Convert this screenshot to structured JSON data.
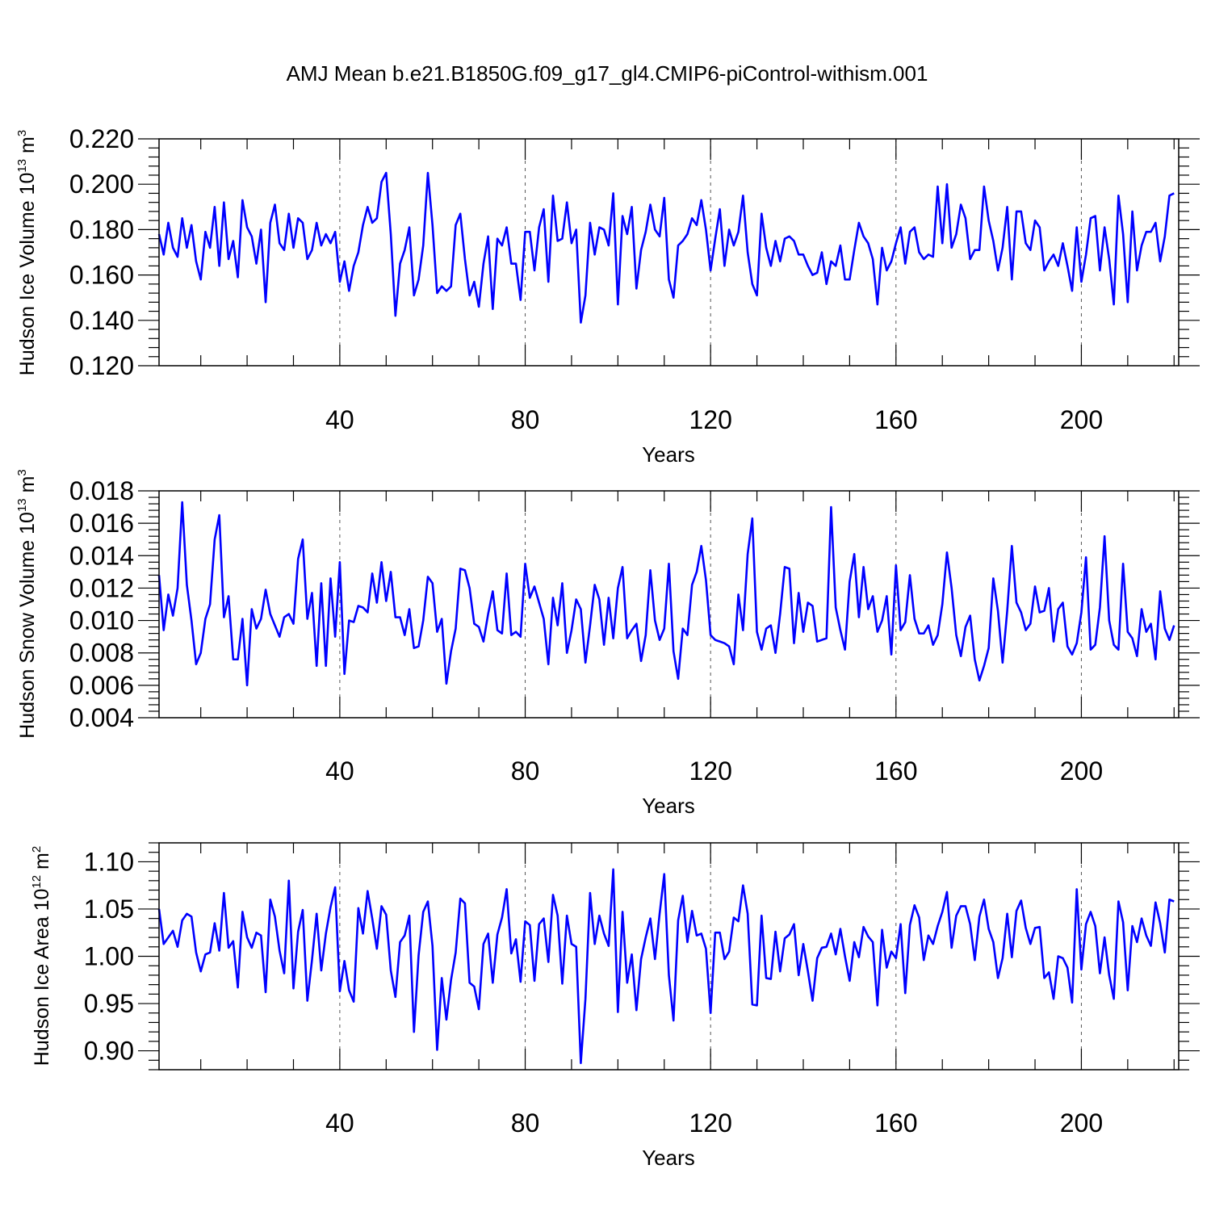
{
  "title": "AMJ Mean b.e21.B1850G.f09_g17_gl4.CMIP6-piControl-withism.001",
  "line_color": "#0000ff",
  "chart_data": [
    {
      "type": "line",
      "ylabel_main": "Hudson Ice Volume 10",
      "ylabel_exp": "13",
      "ylabel_unit": " m",
      "ylabel_unit_exp": "3",
      "xlabel": "Years",
      "xlim": [
        1,
        221
      ],
      "ylim": [
        0.12,
        0.22
      ],
      "xticks": [
        40,
        80,
        120,
        160,
        200
      ],
      "yticks": [
        "0.120",
        "0.140",
        "0.160",
        "0.180",
        "0.200",
        "0.220"
      ],
      "x_start": 1,
      "values": [
        0.178,
        0.169,
        0.183,
        0.172,
        0.168,
        0.185,
        0.172,
        0.182,
        0.166,
        0.158,
        0.179,
        0.172,
        0.19,
        0.164,
        0.192,
        0.167,
        0.175,
        0.159,
        0.193,
        0.181,
        0.177,
        0.165,
        0.18,
        0.148,
        0.183,
        0.191,
        0.174,
        0.171,
        0.187,
        0.172,
        0.185,
        0.183,
        0.167,
        0.171,
        0.183,
        0.173,
        0.178,
        0.174,
        0.179,
        0.157,
        0.166,
        0.153,
        0.164,
        0.17,
        0.182,
        0.19,
        0.183,
        0.185,
        0.201,
        0.205,
        0.178,
        0.142,
        0.165,
        0.171,
        0.181,
        0.151,
        0.158,
        0.173,
        0.205,
        0.182,
        0.152,
        0.155,
        0.153,
        0.155,
        0.182,
        0.187,
        0.167,
        0.151,
        0.157,
        0.146,
        0.165,
        0.177,
        0.145,
        0.176,
        0.173,
        0.181,
        0.165,
        0.165,
        0.149,
        0.179,
        0.179,
        0.162,
        0.181,
        0.189,
        0.157,
        0.195,
        0.175,
        0.176,
        0.192,
        0.174,
        0.18,
        0.139,
        0.151,
        0.183,
        0.169,
        0.181,
        0.18,
        0.173,
        0.196,
        0.147,
        0.186,
        0.178,
        0.19,
        0.154,
        0.171,
        0.179,
        0.191,
        0.18,
        0.177,
        0.194,
        0.158,
        0.15,
        0.173,
        0.175,
        0.178,
        0.185,
        0.182,
        0.193,
        0.18,
        0.162,
        0.176,
        0.189,
        0.164,
        0.18,
        0.173,
        0.179,
        0.195,
        0.17,
        0.156,
        0.151,
        0.187,
        0.172,
        0.164,
        0.175,
        0.166,
        0.176,
        0.177,
        0.175,
        0.169,
        0.169,
        0.164,
        0.16,
        0.161,
        0.17,
        0.156,
        0.166,
        0.164,
        0.173,
        0.158,
        0.158,
        0.171,
        0.183,
        0.177,
        0.174,
        0.167,
        0.147,
        0.172,
        0.162,
        0.166,
        0.174,
        0.181,
        0.165,
        0.179,
        0.181,
        0.17,
        0.167,
        0.169,
        0.168,
        0.199,
        0.174,
        0.2,
        0.172,
        0.178,
        0.191,
        0.185,
        0.167,
        0.171,
        0.171,
        0.199,
        0.184,
        0.175,
        0.162,
        0.172,
        0.19,
        0.158,
        0.188,
        0.188,
        0.174,
        0.171,
        0.184,
        0.181,
        0.162,
        0.166,
        0.169,
        0.164,
        0.174,
        0.164,
        0.153,
        0.181,
        0.157,
        0.169,
        0.185,
        0.186,
        0.162,
        0.181,
        0.167,
        0.147,
        0.195,
        0.178,
        0.148,
        0.188,
        0.162,
        0.173,
        0.179,
        0.179,
        0.183,
        0.166,
        0.177,
        0.195,
        0.196
      ]
    },
    {
      "type": "line",
      "ylabel_main": "Hudson Snow Volume 10",
      "ylabel_exp": "13",
      "ylabel_unit": " m",
      "ylabel_unit_exp": "3",
      "xlabel": "Years",
      "xlim": [
        1,
        221
      ],
      "ylim": [
        0.004,
        0.018
      ],
      "xticks": [
        40,
        80,
        120,
        160,
        200
      ],
      "yticks": [
        "0.004",
        "0.006",
        "0.008",
        "0.010",
        "0.012",
        "0.014",
        "0.016",
        "0.018"
      ],
      "x_start": 1,
      "values": [
        0.0128,
        0.0094,
        0.0116,
        0.0103,
        0.012,
        0.0173,
        0.0122,
        0.01,
        0.0073,
        0.008,
        0.0101,
        0.011,
        0.015,
        0.0165,
        0.0102,
        0.0115,
        0.0076,
        0.0076,
        0.0101,
        0.006,
        0.0107,
        0.0095,
        0.0101,
        0.0119,
        0.0104,
        0.0097,
        0.009,
        0.0102,
        0.0104,
        0.0098,
        0.0138,
        0.015,
        0.0101,
        0.0117,
        0.0072,
        0.0123,
        0.0072,
        0.0126,
        0.009,
        0.0136,
        0.0067,
        0.01,
        0.0099,
        0.0109,
        0.0108,
        0.0105,
        0.0129,
        0.0111,
        0.0136,
        0.0112,
        0.013,
        0.0102,
        0.0102,
        0.0091,
        0.0107,
        0.0083,
        0.0084,
        0.01,
        0.0127,
        0.0123,
        0.0093,
        0.0101,
        0.0061,
        0.0081,
        0.0095,
        0.0132,
        0.0131,
        0.012,
        0.0098,
        0.0096,
        0.0087,
        0.0104,
        0.0118,
        0.0094,
        0.0092,
        0.0129,
        0.0091,
        0.0093,
        0.009,
        0.0135,
        0.0114,
        0.0121,
        0.0111,
        0.0101,
        0.0073,
        0.0114,
        0.0097,
        0.0123,
        0.008,
        0.0094,
        0.0113,
        0.0107,
        0.0074,
        0.0097,
        0.0122,
        0.0113,
        0.0085,
        0.0114,
        0.0089,
        0.012,
        0.0133,
        0.0089,
        0.0094,
        0.0098,
        0.0075,
        0.0091,
        0.0131,
        0.01,
        0.0088,
        0.0095,
        0.0135,
        0.0081,
        0.0064,
        0.0095,
        0.0091,
        0.0122,
        0.013,
        0.0146,
        0.0125,
        0.0091,
        0.0088,
        0.0087,
        0.0086,
        0.0084,
        0.0073,
        0.0116,
        0.0094,
        0.0141,
        0.0163,
        0.0093,
        0.0082,
        0.0095,
        0.0097,
        0.008,
        0.0104,
        0.0133,
        0.0132,
        0.0086,
        0.0117,
        0.0093,
        0.0111,
        0.0109,
        0.0087,
        0.0088,
        0.0089,
        0.017,
        0.0108,
        0.0094,
        0.0082,
        0.0124,
        0.0141,
        0.0102,
        0.0133,
        0.0107,
        0.0115,
        0.0093,
        0.01,
        0.0115,
        0.0079,
        0.0134,
        0.0094,
        0.0099,
        0.0128,
        0.0101,
        0.0092,
        0.0092,
        0.0097,
        0.0085,
        0.0091,
        0.011,
        0.0142,
        0.012,
        0.0091,
        0.0078,
        0.0096,
        0.0103,
        0.0076,
        0.0063,
        0.0072,
        0.0083,
        0.0126,
        0.0106,
        0.0074,
        0.0106,
        0.0146,
        0.0111,
        0.0105,
        0.0094,
        0.0098,
        0.0121,
        0.0105,
        0.0106,
        0.012,
        0.0087,
        0.0107,
        0.0111,
        0.0084,
        0.0079,
        0.0086,
        0.0105,
        0.0139,
        0.0082,
        0.0085,
        0.0108,
        0.0152,
        0.01,
        0.0085,
        0.0082,
        0.0135,
        0.0093,
        0.0089,
        0.0078,
        0.0107,
        0.0093,
        0.0098,
        0.0076,
        0.0118,
        0.0095,
        0.0088,
        0.0097
      ]
    },
    {
      "type": "line",
      "ylabel_main": "Hudson Ice Area 10",
      "ylabel_exp": "12",
      "ylabel_unit": " m",
      "ylabel_unit_exp": "2",
      "xlabel": "Years",
      "xlim": [
        1,
        221
      ],
      "ylim": [
        0.88,
        1.12
      ],
      "xticks": [
        40,
        80,
        120,
        160,
        200
      ],
      "yticks": [
        "0.90",
        "0.95",
        "1.00",
        "1.05",
        "1.10"
      ],
      "x_start": 1,
      "values": [
        1.05,
        1.013,
        1.02,
        1.027,
        1.01,
        1.038,
        1.045,
        1.042,
        1.004,
        0.984,
        1.002,
        1.004,
        1.035,
        1.006,
        1.067,
        1.009,
        1.016,
        0.967,
        1.047,
        1.02,
        1.009,
        1.025,
        1.022,
        0.962,
        1.06,
        1.042,
        1.006,
        0.982,
        1.08,
        0.966,
        1.026,
        1.049,
        0.953,
        0.996,
        1.045,
        0.985,
        1.024,
        1.052,
        1.073,
        0.963,
        0.995,
        0.964,
        0.952,
        1.051,
        1.024,
        1.069,
        1.04,
        1.008,
        1.053,
        1.044,
        0.985,
        0.957,
        1.015,
        1.022,
        1.043,
        0.92,
        1.001,
        1.047,
        1.058,
        1.011,
        0.901,
        0.977,
        0.933,
        0.975,
        1.004,
        1.061,
        1.056,
        0.972,
        0.968,
        0.944,
        1.013,
        1.024,
        0.972,
        1.023,
        1.041,
        1.071,
        1.003,
        1.018,
        0.973,
        1.037,
        1.033,
        0.974,
        1.034,
        1.04,
        0.994,
        1.065,
        1.043,
        0.971,
        1.043,
        1.013,
        1.01,
        0.887,
        0.955,
        1.067,
        1.013,
        1.043,
        1.024,
        1.011,
        1.092,
        0.941,
        1.047,
        0.972,
        1.002,
        0.943,
        0.997,
        1.02,
        1.04,
        0.997,
        1.045,
        1.087,
        0.98,
        0.932,
        1.038,
        1.064,
        1.015,
        1.048,
        1.022,
        1.024,
        1.008,
        0.94,
        1.025,
        1.025,
        0.997,
        1.005,
        1.041,
        1.037,
        1.075,
        1.045,
        0.949,
        0.948,
        1.043,
        0.977,
        0.976,
        1.026,
        0.984,
        1.019,
        1.023,
        1.034,
        0.98,
        1.013,
        0.984,
        0.953,
        0.998,
        1.009,
        1.01,
        1.024,
        1.002,
        1.029,
        1.0,
        0.974,
        1.015,
        0.999,
        1.031,
        1.021,
        1.015,
        0.948,
        1.028,
        0.988,
        1.005,
        0.998,
        1.034,
        0.961,
        1.033,
        1.054,
        1.041,
        0.996,
        1.022,
        1.013,
        1.032,
        1.047,
        1.068,
        1.009,
        1.043,
        1.053,
        1.053,
        1.034,
        0.996,
        1.042,
        1.06,
        1.029,
        1.015,
        0.977,
        0.998,
        1.045,
        0.999,
        1.048,
        1.059,
        1.03,
        1.013,
        1.03,
        1.031,
        0.977,
        0.983,
        0.955,
        1.0,
        0.998,
        0.988,
        0.951,
        1.071,
        0.986,
        1.034,
        1.047,
        1.032,
        0.982,
        1.02,
        0.98,
        0.955,
        1.058,
        1.036,
        0.964,
        1.032,
        1.015,
        1.04,
        1.022,
        1.011,
        1.057,
        1.035,
        1.004,
        1.06,
        1.058
      ]
    }
  ]
}
